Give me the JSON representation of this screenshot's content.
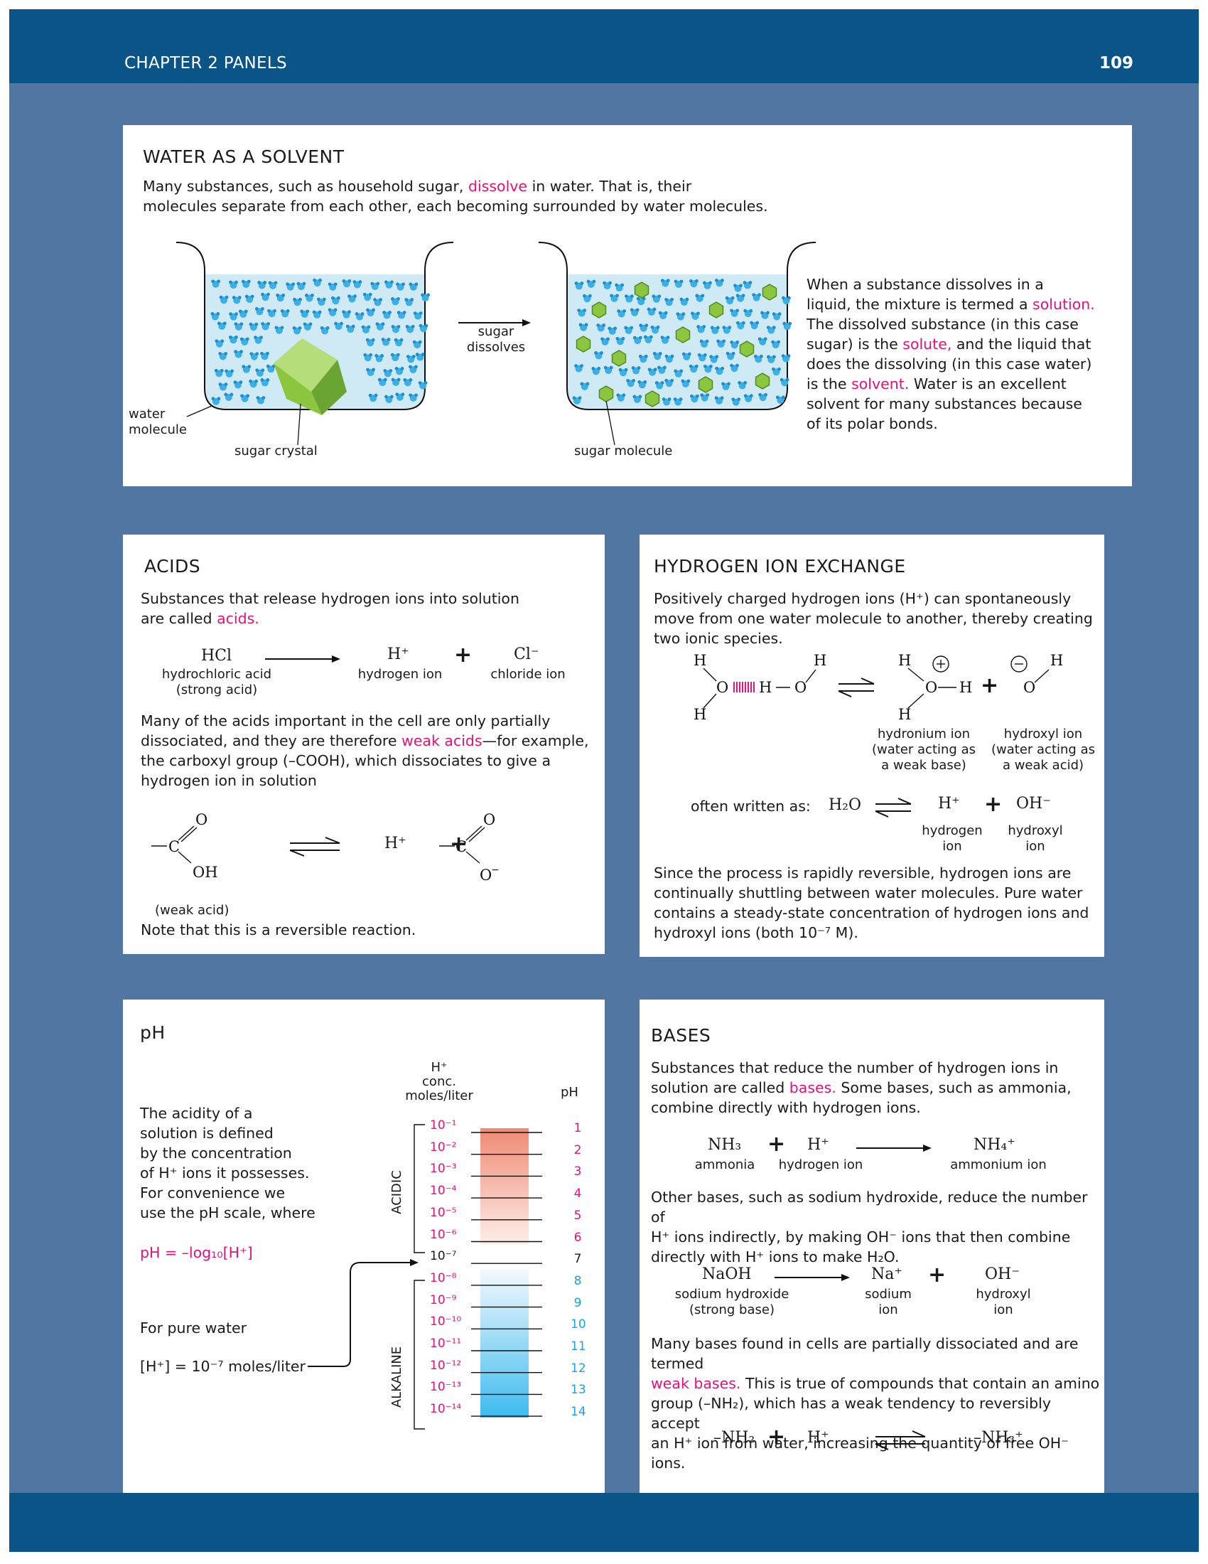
{
  "header": {
    "chapter": "CHAPTER 2 PANELS",
    "page": "109"
  },
  "solvent": {
    "title": "WATER AS A SOLVENT",
    "intro_1": "Many substances, such as household sugar,",
    "intro_dissolve": "dissolve",
    "intro_2": "in water. That is, their",
    "intro_3": "molecules separate from each other, each becoming surrounded by water molecules.",
    "arrow_label_1": "sugar",
    "arrow_label_2": "dissolves",
    "water_molecule_1": "water",
    "water_molecule_2": "molecule",
    "sugar_crystal": "sugar crystal",
    "sugar_molecule": "sugar molecule",
    "side_1": "When a substance dissolves in a",
    "side_2": "liquid, the mixture is termed a",
    "side_solution": "solution.",
    "side_3": "The dissolved substance (in this case",
    "side_4": "sugar) is the",
    "side_solute": "solute,",
    "side_5": "and the liquid that",
    "side_6": "does the dissolving (in this case water)",
    "side_7": "is the",
    "side_solvent": "solvent.",
    "side_8": "Water is an excellent",
    "side_9": "solvent for many substances because",
    "side_10": "of its polar bonds."
  },
  "acids": {
    "title": "ACIDS",
    "intro_1": "Substances that release hydrogen ions into solution",
    "intro_2": "are called",
    "intro_acids": "acids.",
    "hcl": "HCl",
    "hcl_name": "hydrochloric acid",
    "hcl_note": "(strong acid)",
    "hplus": "H⁺",
    "hplus_name": "hydrogen ion",
    "clminus": "Cl⁻",
    "cl_name": "chloride ion",
    "p2_1": "Many of the acids important in the cell are only partially",
    "p2_2": "dissociated, and they are therefore",
    "p2_weak": "weak acids",
    "p2_3": "—for example,",
    "p2_4": "the carboxyl group (–COOH), which dissociates to give a",
    "p2_5": "hydrogen ion in solution",
    "weak_acid": "(weak acid)",
    "note": "Note that this is a reversible reaction."
  },
  "hexchange": {
    "title": "HYDROGEN ION EXCHANGE",
    "intro_1": "Positively charged hydrogen ions (H⁺) can spontaneously",
    "intro_2": "move from one water molecule to another, thereby creating",
    "intro_3": "two ionic species.",
    "hydronium_1": "hydronium ion",
    "hydronium_2": "(water acting as",
    "hydronium_3": "a weak base)",
    "hydroxyl_1": "hydroxyl ion",
    "hydroxyl_2": "(water acting as",
    "hydroxyl_3": "a weak acid)",
    "often": "often written as:",
    "h2o": "H₂O",
    "hplus": "H⁺",
    "ohminus": "OH⁻",
    "hyd_1": "hydrogen",
    "hyd_2": "ion",
    "hox_1": "hydroxyl",
    "hox_2": "ion",
    "p2_1": "Since the process is rapidly reversible, hydrogen ions are",
    "p2_2": "continually shuttling between water molecules. Pure water",
    "p2_3": "contains a steady-state concentration of hydrogen ions and",
    "p2_4": "hydroxyl ions (both 10⁻⁷ M)."
  },
  "ph": {
    "title": "pH",
    "col_conc_1": "H⁺",
    "col_conc_2": "conc.",
    "col_conc_3": "moles/liter",
    "col_ph": "pH",
    "t1": "The acidity of a",
    "t2": "solution is defined",
    "t3": "by the concentration",
    "t4": "of H⁺ ions it possesses.",
    "t5": "For convenience we",
    "t6": "use the pH scale, where",
    "formula": "pH = –log₁₀[H⁺]",
    "pure": "For pure water",
    "pure_conc": "[H⁺] = 10⁻⁷ moles/liter",
    "acidic": "ACIDIC",
    "alkaline": "ALKALINE",
    "scale": [
      {
        "conc": "10⁻¹",
        "ph": "1"
      },
      {
        "conc": "10⁻²",
        "ph": "2"
      },
      {
        "conc": "10⁻³",
        "ph": "3"
      },
      {
        "conc": "10⁻⁴",
        "ph": "4"
      },
      {
        "conc": "10⁻⁵",
        "ph": "5"
      },
      {
        "conc": "10⁻⁶",
        "ph": "6"
      },
      {
        "conc": "10⁻⁷",
        "ph": "7"
      },
      {
        "conc": "10⁻⁸",
        "ph": "8"
      },
      {
        "conc": "10⁻⁹",
        "ph": "9"
      },
      {
        "conc": "10⁻¹⁰",
        "ph": "10"
      },
      {
        "conc": "10⁻¹¹",
        "ph": "11"
      },
      {
        "conc": "10⁻¹²",
        "ph": "12"
      },
      {
        "conc": "10⁻¹³",
        "ph": "13"
      },
      {
        "conc": "10⁻¹⁴",
        "ph": "14"
      }
    ]
  },
  "bases": {
    "title": "BASES",
    "intro_1": "Substances that reduce the number of hydrogen ions in",
    "intro_2": "solution are called",
    "intro_bases": "bases.",
    "intro_3": "Some bases, such as ammonia,",
    "intro_4": "combine directly with hydrogen ions.",
    "nh3": "NH₃",
    "nh3_name": "ammonia",
    "hplus": "H⁺",
    "hplus_name": "hydrogen ion",
    "nh4": "NH₄⁺",
    "nh4_name": "ammonium ion",
    "p2_1": "Other bases, such as sodium hydroxide, reduce the number of",
    "p2_2": "H⁺ ions indirectly, by making OH⁻ ions that then combine",
    "p2_3": "directly with H⁺ ions to make H₂O.",
    "naoh": "NaOH",
    "naoh_name_1": "sodium hydroxide",
    "naoh_name_2": "(strong base)",
    "naplus": "Na⁺",
    "na_name_1": "sodium",
    "na_name_2": "ion",
    "ohminus": "OH⁻",
    "oh_name_1": "hydroxyl",
    "oh_name_2": "ion",
    "p3_1": "Many bases found in cells are partially dissociated and are termed",
    "p3_weak": "weak bases.",
    "p3_2": "This is true of compounds that contain an amino",
    "p3_3": "group (–NH₂), which has a weak tendency to reversibly accept",
    "p3_4": "an H⁺ ion from water, increasing the quantity of free OH⁻ ions.",
    "nh2": "–NH₂",
    "nh3plus": "–NH₃⁺"
  },
  "colors": {
    "frame": "#5276a2",
    "bar": "#0b5488",
    "accent": "#e2127a",
    "alkaline": "#1aa3e0",
    "water": "#cfe9f5",
    "sugar": "#8cc63f"
  }
}
